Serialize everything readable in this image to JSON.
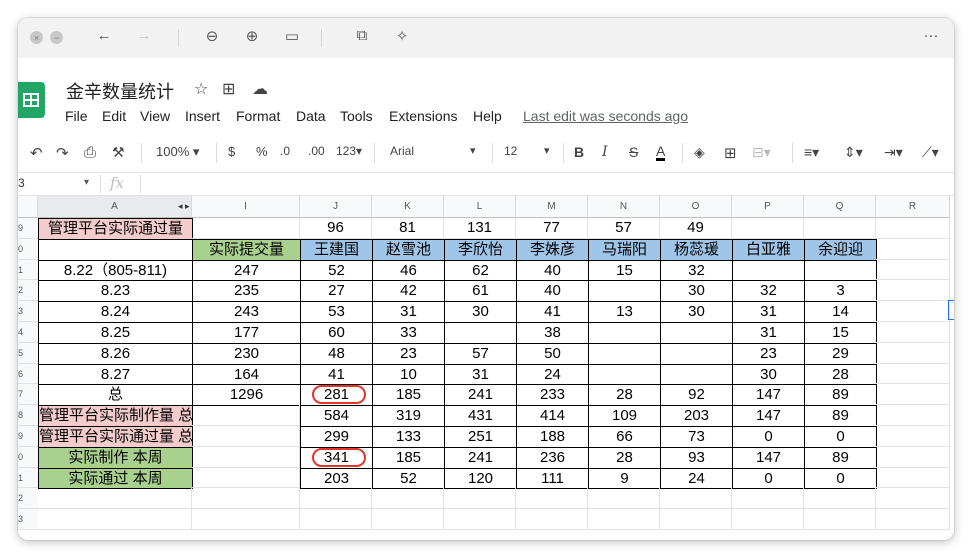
{
  "browser": {
    "window_controls": [
      "close",
      "minimize"
    ],
    "toolbar_icons": [
      "back-icon",
      "forward-icon",
      "zoom-out-icon",
      "zoom-in-icon",
      "fit-page-icon",
      "share-icon",
      "magic-icon",
      "more-icon"
    ],
    "more_label": "···"
  },
  "doc": {
    "title": "金辛数量统计",
    "menu": [
      "File",
      "Edit",
      "View",
      "Insert",
      "Format",
      "Data",
      "Tools",
      "Extensions",
      "Help"
    ],
    "last_edit": "Last edit was seconds ago"
  },
  "toolbar": {
    "zoom": "100%",
    "currency": "$",
    "percent": "%",
    "dec_decrease": ".0",
    "dec_increase": ".00",
    "number_format": "123",
    "font": "Arial",
    "font_size": "12",
    "bold": "B",
    "italic": "I",
    "strike": "S",
    "text_color": "A"
  },
  "formula_bar": {
    "name_box": "3",
    "fx": "fx"
  },
  "columns": [
    "A",
    "I",
    "J",
    "K",
    "L",
    "M",
    "N",
    "O",
    "P",
    "Q",
    "R"
  ],
  "row_numbers": [
    "9",
    "0",
    "1",
    "2",
    "3",
    "4",
    "5",
    "6",
    "7",
    "8",
    "9",
    "0",
    "1",
    "2",
    "3"
  ],
  "rows": [
    [
      "管理平台实际通过量",
      "",
      "96",
      "81",
      "131",
      "77",
      "57",
      "49",
      "",
      "",
      ""
    ],
    [
      "",
      "实际提交量",
      "王建国",
      "赵雪池",
      "李欣怡",
      "李姝彦",
      "马瑞阳",
      "杨蕊瑗",
      "白亚雅",
      "余迎迎",
      ""
    ],
    [
      "8.22（805-811)",
      "247",
      "52",
      "46",
      "62",
      "40",
      "15",
      "32",
      "",
      "",
      ""
    ],
    [
      "8.23",
      "235",
      "27",
      "42",
      "61",
      "40",
      "",
      "30",
      "32",
      "3",
      ""
    ],
    [
      "8.24",
      "243",
      "53",
      "31",
      "30",
      "41",
      "13",
      "30",
      "31",
      "14",
      ""
    ],
    [
      "8.25",
      "177",
      "60",
      "33",
      "",
      "38",
      "",
      "",
      "31",
      "15",
      ""
    ],
    [
      "8.26",
      "230",
      "48",
      "23",
      "57",
      "50",
      "",
      "",
      "23",
      "29",
      ""
    ],
    [
      "8.27",
      "164",
      "41",
      "10",
      "31",
      "24",
      "",
      "",
      "30",
      "28",
      ""
    ],
    [
      "总",
      "1296",
      "281",
      "185",
      "241",
      "233",
      "28",
      "92",
      "147",
      "89",
      ""
    ],
    [
      "管理平台实际制作量 总",
      "",
      "584",
      "319",
      "431",
      "414",
      "109",
      "203",
      "147",
      "89",
      ""
    ],
    [
      "管理平台实际通过量 总",
      "",
      "299",
      "133",
      "251",
      "188",
      "66",
      "73",
      "0",
      "0",
      ""
    ],
    [
      "实际制作 本周",
      "",
      "341",
      "185",
      "241",
      "236",
      "28",
      "93",
      "147",
      "89",
      ""
    ],
    [
      "实际通过 本周",
      "",
      "203",
      "52",
      "120",
      "111",
      "9",
      "24",
      "0",
      "0",
      ""
    ],
    [
      "",
      "",
      "",
      "",
      "",
      "",
      "",
      "",
      "",
      "",
      ""
    ],
    [
      "",
      "",
      "",
      "",
      "",
      "",
      "",
      "",
      "",
      "",
      ""
    ]
  ],
  "colors": {
    "pink": "#f4cccc",
    "green": "#a9d18e",
    "blue": "#9fc5e8",
    "annotation": "#e8332a"
  }
}
